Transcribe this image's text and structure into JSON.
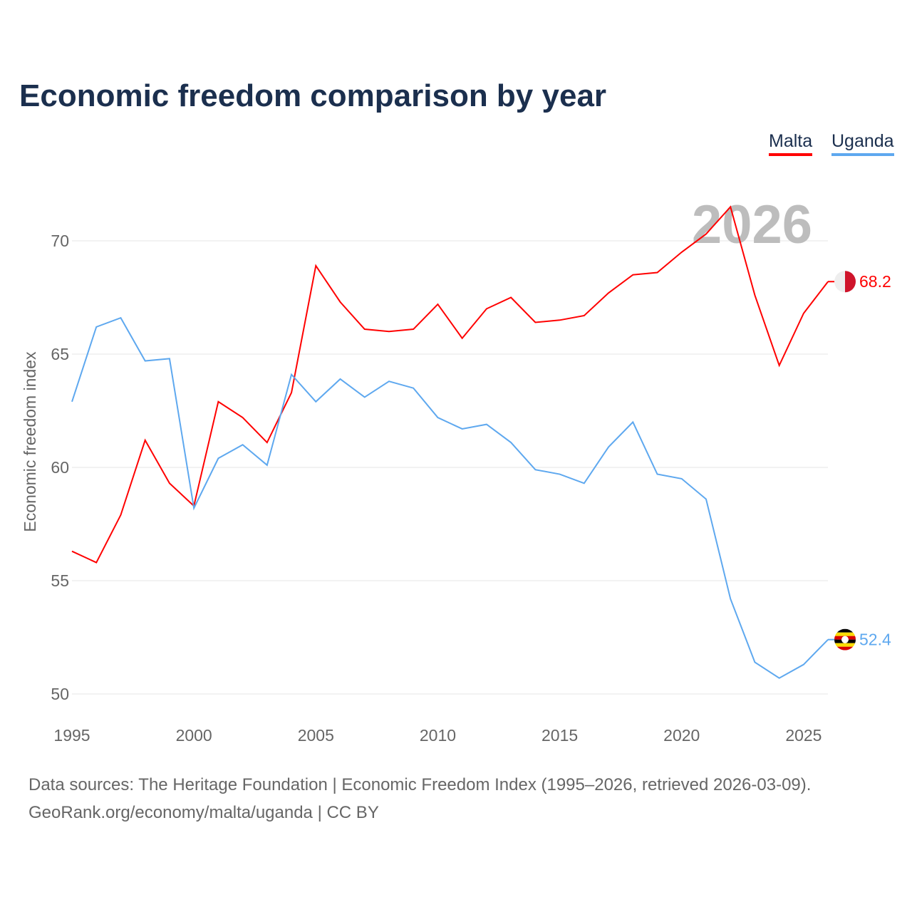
{
  "chart_data": {
    "type": "line",
    "title": "Economic freedom comparison by year",
    "ylabel": "Economic freedom index",
    "xlabel": "",
    "ylim": [
      50,
      72
    ],
    "xlim": [
      1995,
      2026
    ],
    "yticks": [
      50,
      55,
      60,
      65,
      70
    ],
    "xticks": [
      1995,
      2000,
      2005,
      2010,
      2015,
      2020,
      2025
    ],
    "grid": true,
    "legend_position": "top-right",
    "year_label": "2026",
    "x": [
      1995,
      1996,
      1997,
      1998,
      1999,
      2000,
      2001,
      2002,
      2003,
      2004,
      2005,
      2006,
      2007,
      2008,
      2009,
      2010,
      2011,
      2012,
      2013,
      2014,
      2015,
      2016,
      2017,
      2018,
      2019,
      2020,
      2021,
      2022,
      2023,
      2024,
      2025,
      2026
    ],
    "series": [
      {
        "name": "Malta",
        "color": "#ff0000",
        "end_label": "68.2",
        "values": [
          56.3,
          55.8,
          57.9,
          61.2,
          59.3,
          58.3,
          62.9,
          62.2,
          61.1,
          63.3,
          68.9,
          67.3,
          66.1,
          66.0,
          66.1,
          67.2,
          65.7,
          67.0,
          67.5,
          66.4,
          66.5,
          66.7,
          67.7,
          68.5,
          68.6,
          69.5,
          70.3,
          71.5,
          67.6,
          64.5,
          66.8,
          68.2
        ]
      },
      {
        "name": "Uganda",
        "color": "#5ea8ef",
        "end_label": "52.4",
        "values": [
          62.9,
          66.2,
          66.6,
          64.7,
          64.8,
          58.2,
          60.4,
          61.0,
          60.1,
          64.1,
          62.9,
          63.9,
          63.1,
          63.8,
          63.5,
          62.2,
          61.7,
          61.9,
          61.1,
          59.9,
          59.7,
          59.3,
          60.9,
          62.0,
          59.7,
          59.5,
          58.6,
          54.2,
          51.4,
          50.7,
          51.3,
          52.4
        ]
      }
    ]
  },
  "footer": {
    "line1": "Data sources: The Heritage Foundation | Economic Freedom Index (1995–2026, retrieved 2026-03-09).",
    "line2": "GeoRank.org/economy/malta/uganda | CC BY"
  }
}
